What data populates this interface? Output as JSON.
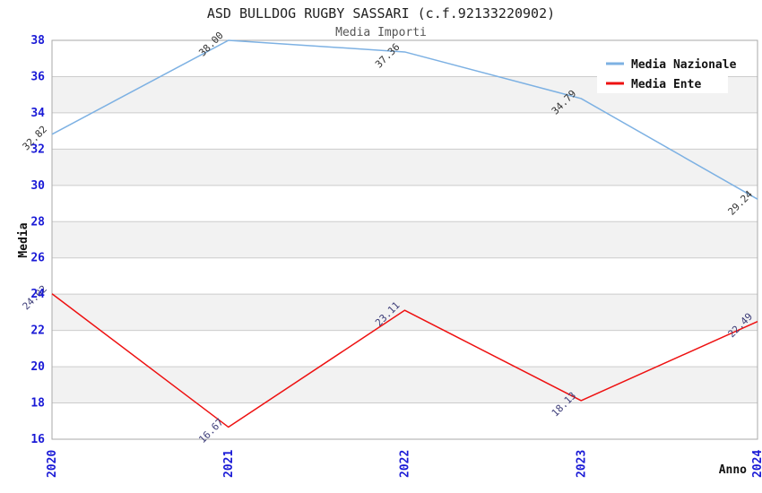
{
  "title": "ASD BULLDOG RUGBY SASSARI (c.f.92133220902)",
  "subtitle": "Media Importi",
  "axes": {
    "x_label": "Anno",
    "y_label": "Media"
  },
  "colors": {
    "tick_label": "#1a1ad6",
    "band_gray": "#f2f2f2",
    "band_white": "#ffffff",
    "gridline": "#cccccc",
    "frame": "#aaaaaa",
    "title": "#222222",
    "subtitle": "#555555",
    "legend_background": "#ffffff",
    "nazionale_line": "#7db1e3",
    "ente_line": "#ee1111"
  },
  "chart_data": {
    "type": "line",
    "title": "ASD BULLDOG RUGBY SASSARI (c.f.92133220902)",
    "subtitle": "Media Importi",
    "xlabel": "Anno",
    "ylabel": "Media",
    "categories": [
      "2020",
      "2021",
      "2022",
      "2023",
      "2024"
    ],
    "yticks": [
      38,
      36,
      34,
      32,
      30,
      28,
      26,
      24,
      22,
      20,
      18,
      16
    ],
    "ylim": [
      16,
      38
    ],
    "grid": "horizontal gridlines with alternating white/gray bands",
    "legend_position": "top-right",
    "point_label_format": "2-decimals, rotated 45deg",
    "series": [
      {
        "name": "Media Nazionale",
        "color": "#7db1e3",
        "label_color": "#333333",
        "values": [
          32.82,
          38.0,
          37.36,
          34.79,
          29.24
        ]
      },
      {
        "name": "Media Ente",
        "color": "#ee1111",
        "label_color": "#3c3c78",
        "values": [
          24.02,
          16.67,
          23.11,
          18.13,
          22.49
        ]
      }
    ]
  }
}
